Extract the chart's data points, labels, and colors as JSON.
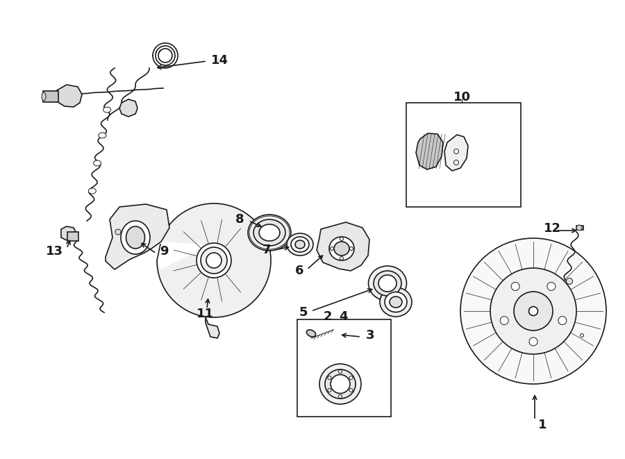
{
  "bg_color": "#ffffff",
  "line_color": "#1a1a1a",
  "figsize": [
    9.0,
    6.61
  ],
  "dpi": 100,
  "lw": 1.2,
  "lw_thin": 0.7
}
